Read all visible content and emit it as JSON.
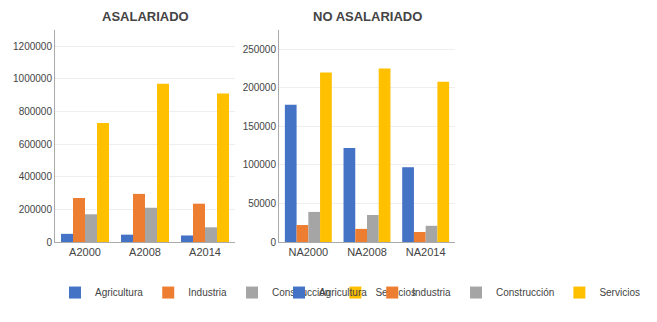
{
  "chart_data": [
    {
      "type": "bar",
      "title": "ASALARIADO",
      "categories": [
        "A2000",
        "A2008",
        "A2014"
      ],
      "series": [
        {
          "name": "Agricultura",
          "color": "#4472C4",
          "values": [
            50000,
            45000,
            40000
          ]
        },
        {
          "name": "Industria",
          "color": "#ED7D31",
          "values": [
            270000,
            295000,
            235000
          ]
        },
        {
          "name": "Construcción",
          "color": "#A5A5A5",
          "values": [
            170000,
            210000,
            90000
          ]
        },
        {
          "name": "Servicios",
          "color": "#FFC000",
          "values": [
            730000,
            970000,
            910000
          ]
        }
      ],
      "ylim": [
        0,
        1300000
      ],
      "yticks": [
        0,
        200000,
        400000,
        600000,
        800000,
        1000000,
        1200000
      ],
      "grid": true,
      "legend": "bottom"
    },
    {
      "type": "bar",
      "title": "NO ASALARIADO",
      "categories": [
        "NA2000",
        "NA2008",
        "NA2014"
      ],
      "series": [
        {
          "name": "Agricultura",
          "color": "#4472C4",
          "values": [
            178000,
            122000,
            97000
          ]
        },
        {
          "name": "Industria",
          "color": "#ED7D31",
          "values": [
            22000,
            17000,
            13000
          ]
        },
        {
          "name": "Construcción",
          "color": "#A5A5A5",
          "values": [
            39000,
            35000,
            21000
          ]
        },
        {
          "name": "Servicios",
          "color": "#FFC000",
          "values": [
            220000,
            225000,
            208000
          ]
        }
      ],
      "ylim": [
        0,
        275000
      ],
      "yticks": [
        0,
        50000,
        100000,
        150000,
        200000,
        250000
      ],
      "grid": true,
      "legend": "bottom"
    }
  ]
}
